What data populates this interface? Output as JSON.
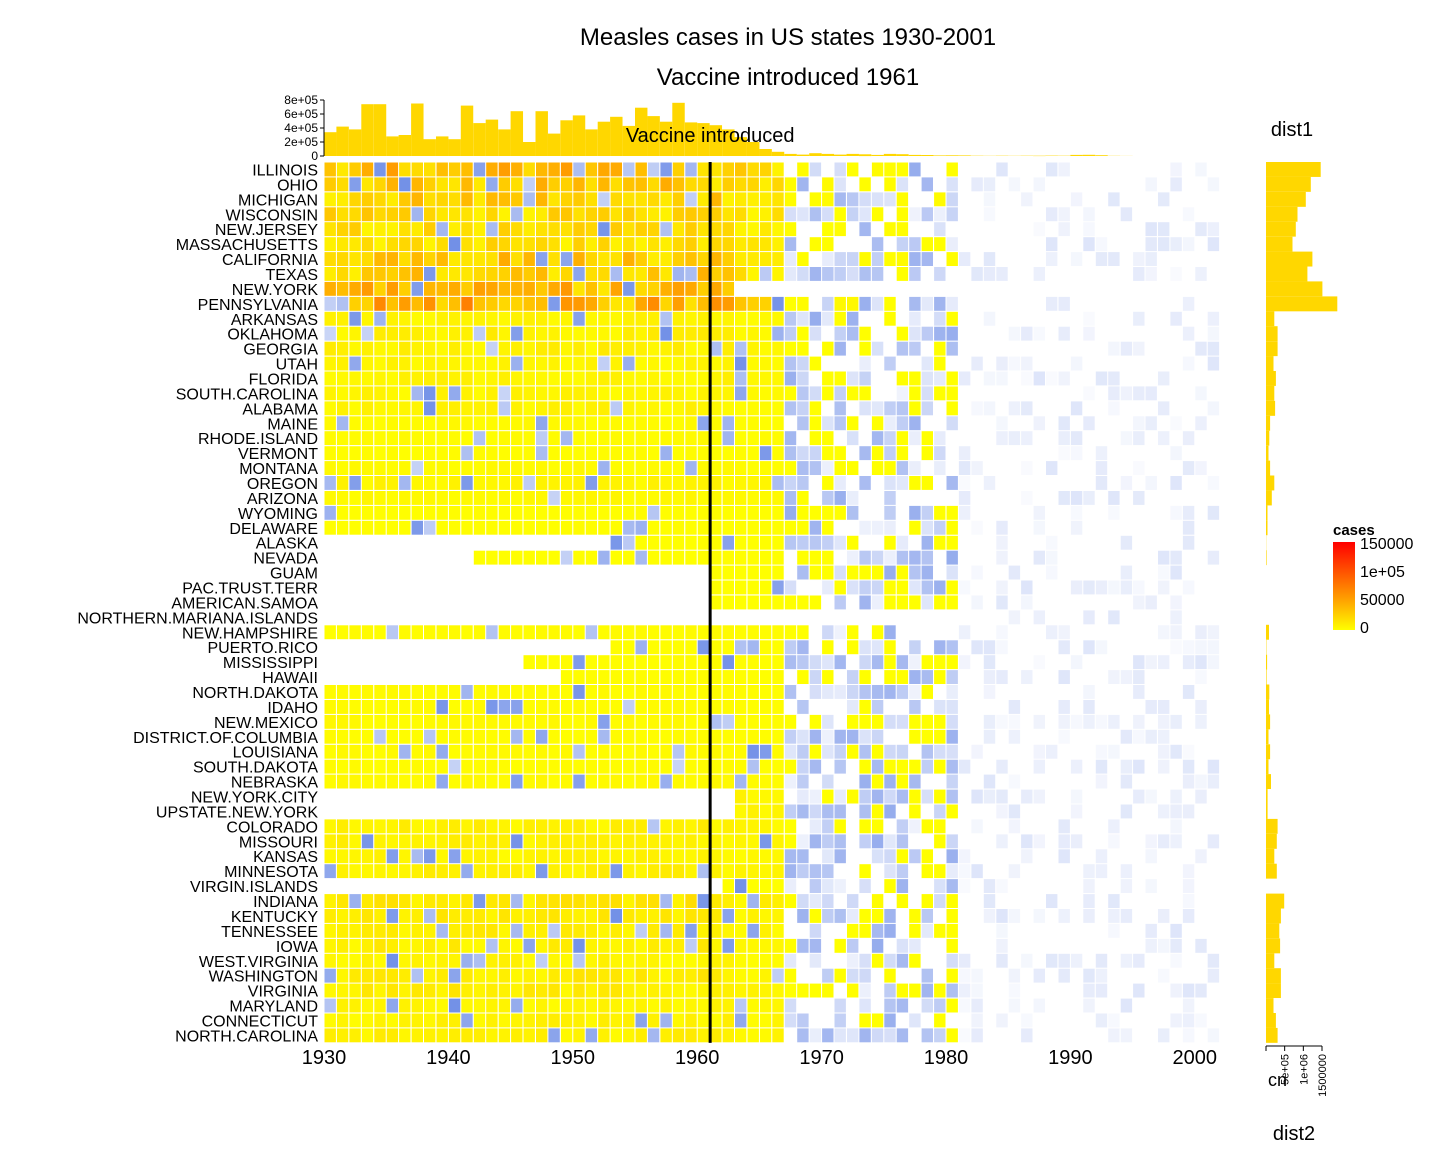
{
  "chart_data": {
    "type": "heatmap",
    "title": "Measles cases in US states 1930-2001",
    "subtitle": "Vaccine introduced 1961",
    "annotation": "Vaccine introduced",
    "vaccine_year": 1961,
    "x_range": [
      1930,
      2001
    ],
    "x_ticks": [
      "1930",
      "1940",
      "1950",
      "1960",
      "1970",
      "1980",
      "1990",
      "2000"
    ],
    "states": [
      "ILLINOIS",
      "OHIO",
      "MICHIGAN",
      "WISCONSIN",
      "NEW.JERSEY",
      "MASSACHUSETTS",
      "CALIFORNIA",
      "TEXAS",
      "NEW.YORK",
      "PENNSYLVANIA",
      "ARKANSAS",
      "OKLAHOMA",
      "GEORGIA",
      "UTAH",
      "FLORIDA",
      "SOUTH.CAROLINA",
      "ALABAMA",
      "MAINE",
      "RHODE.ISLAND",
      "VERMONT",
      "MONTANA",
      "OREGON",
      "ARIZONA",
      "WYOMING",
      "DELAWARE",
      "ALASKA",
      "NEVADA",
      "GUAM",
      "PAC.TRUST.TERR",
      "AMERICAN.SAMOA",
      "NORTHERN.MARIANA.ISLANDS",
      "NEW.HAMPSHIRE",
      "PUERTO.RICO",
      "MISSISSIPPI",
      "HAWAII",
      "NORTH.DAKOTA",
      "IDAHO",
      "NEW.MEXICO",
      "DISTRICT.OF.COLUMBIA",
      "LOUISIANA",
      "SOUTH.DAKOTA",
      "NEBRASKA",
      "NEW.YORK.CITY",
      "UPSTATE.NEW.YORK",
      "COLORADO",
      "MISSOURI",
      "KANSAS",
      "MINNESOTA",
      "VIRGIN.ISLANDS",
      "INDIANA",
      "KENTUCKY",
      "TENNESSEE",
      "IOWA",
      "WEST.VIRGINIA",
      "WASHINGTON",
      "VIRGINIA",
      "MARYLAND",
      "CONNECTICUT",
      "NORTH.CAROLINA"
    ],
    "state_scale": [
      33000,
      27000,
      24000,
      19000,
      18000,
      16000,
      28000,
      25000,
      34000,
      43000,
      5000,
      7000,
      7000,
      4500,
      6000,
      5000,
      5500,
      2500,
      2000,
      1500,
      2500,
      5000,
      3500,
      900,
      900,
      300,
      500,
      0,
      0,
      0,
      0,
      1800,
      700,
      1200,
      700,
      2000,
      1800,
      2500,
      1500,
      2500,
      1500,
      3000,
      9000,
      9000,
      7000,
      6500,
      5000,
      6500,
      100,
      11000,
      9000,
      8000,
      8500,
      5000,
      9000,
      9000,
      4500,
      6000,
      7000
    ],
    "state_start": {
      "ALASKA": 1953,
      "NEVADA": 1942,
      "GUAM": 1961,
      "PAC.TRUST.TERR": 1961,
      "AMERICAN.SAMOA": 1961,
      "NORTHERN.MARIANA.ISLANDS": 1981,
      "PUERTO.RICO": 1953,
      "MISSISSIPPI": 1946,
      "HAWAII": 1949,
      "NEW.YORK.CITY": 1963,
      "UPSTATE.NEW.YORK": 1963,
      "VIRGIN.ISLANDS": 1962
    },
    "state_end": {
      "NEW.YORK": 1962
    },
    "year_totals": [
      340000,
      420000,
      380000,
      740000,
      740000,
      280000,
      300000,
      750000,
      240000,
      280000,
      240000,
      720000,
      470000,
      520000,
      380000,
      640000,
      200000,
      640000,
      320000,
      510000,
      580000,
      380000,
      490000,
      560000,
      430000,
      690000,
      570000,
      490000,
      760000,
      480000,
      470000,
      440000,
      380000,
      270000,
      200000,
      100000,
      60000,
      30000,
      20000,
      40000,
      30000,
      20000,
      30000,
      25000,
      15000,
      30000,
      26000,
      15000,
      14000,
      9000,
      10000,
      8000,
      4000,
      3000,
      4000,
      3000,
      4000,
      5000,
      6000,
      4000,
      15000,
      17000,
      12000,
      3000,
      1000,
      500,
      300,
      200,
      100,
      100,
      100,
      100
    ],
    "legend": {
      "title": "cases",
      "labels": [
        "150000",
        "1e+05",
        "50000",
        "0"
      ],
      "values": [
        150000,
        100000,
        50000,
        0
      ],
      "colors": [
        "#ff0000",
        "#ffa500",
        "#ffff00"
      ]
    },
    "top_axis_labels": [
      "8e+05",
      "6e+05",
      "4e+05",
      "2e+05",
      "0"
    ],
    "top_axis_values": [
      800000,
      600000,
      400000,
      200000,
      0
    ],
    "right_panel_label": "dist1",
    "bottom_right_label": "dist2",
    "right_axis_title": "cn",
    "right_axis_labels": [
      "5e+05",
      "1e+06",
      "1500000"
    ],
    "bar_color": "#ffd700",
    "missing_color": "#6a8ae6"
  }
}
